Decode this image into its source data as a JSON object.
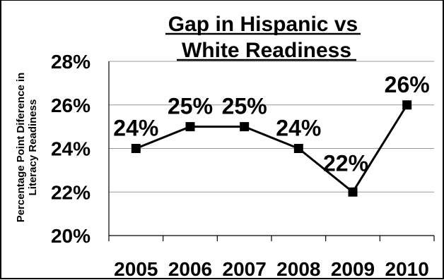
{
  "chart_data": {
    "type": "line",
    "title_line1": "Gap in Hispanic vs",
    "title_line2": "White Readiness",
    "xlabel": "",
    "ylabel_line1": "Percentage Point Diference in",
    "ylabel_line2": "Literacy Readiness",
    "categories": [
      "2005",
      "2006",
      "2007",
      "2008",
      "2009",
      "2010"
    ],
    "values": [
      24,
      25,
      25,
      24,
      22,
      26
    ],
    "data_labels": [
      "24%",
      "25%",
      "25%",
      "24%",
      "22%",
      "26%"
    ],
    "ylim": [
      20,
      28
    ],
    "yticks": [
      20,
      22,
      24,
      26,
      28
    ],
    "ytick_labels": [
      "20%",
      "22%",
      "24%",
      "26%",
      "28%"
    ],
    "grid": true,
    "line_color": "#000000",
    "grid_color": "#999999",
    "marker": "square"
  }
}
